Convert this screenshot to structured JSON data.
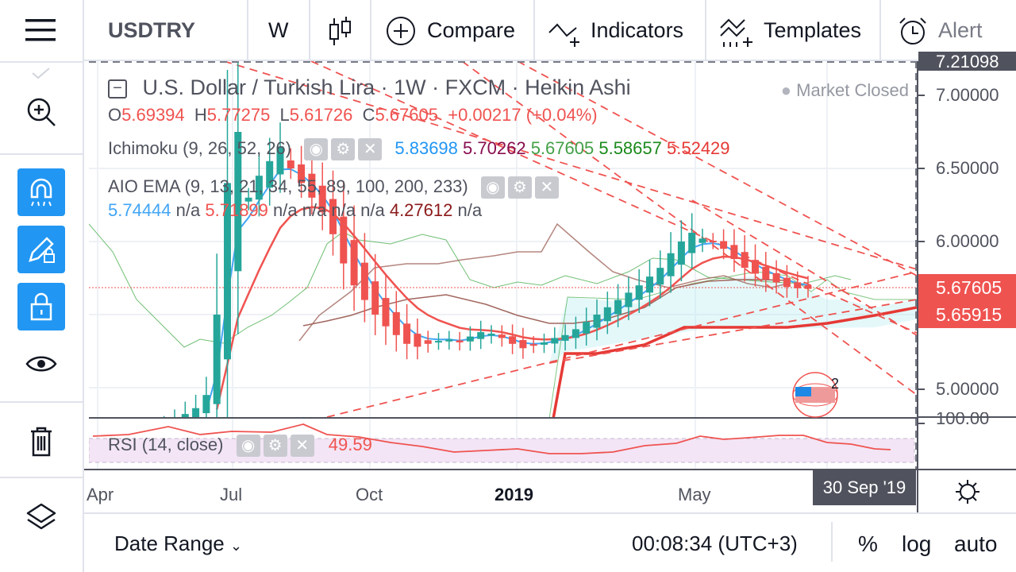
{
  "toolbar": {
    "symbol": "USDTRY",
    "interval": "W",
    "compare": "Compare",
    "indicators": "Indicators",
    "templates": "Templates",
    "alert": "Alert"
  },
  "legend": {
    "title": "U.S. Dollar / Turkish Lira · 1W · FXCM · Heikin Ashi",
    "market_status": "Market Closed",
    "o_label": "O",
    "o": "5.69394",
    "h_label": "H",
    "h": "5.77275",
    "l_label": "L",
    "l": "5.61726",
    "c_label": "C",
    "c": "5.67605",
    "change": "+0.00217 (+0.04%)",
    "ichimoku": {
      "name": "Ichimoku (9, 26, 52, 26)",
      "v1": "5.83698",
      "v2": "5.70262",
      "v3": "5.67605",
      "v4": "5.58657",
      "v5": "5.52429"
    },
    "ema": {
      "name": "AIO EMA (9, 13, 21, 34, 55, 89, 100, 200, 233)",
      "v1": "5.74444",
      "v2": "n/a",
      "v3": "5.71899",
      "v4": "n/a n/a n/a n/a",
      "v5": "4.27612",
      "v6": "n/a"
    },
    "rsi": {
      "name": "RSI (14, close)",
      "value": "49.59"
    }
  },
  "price_axis": {
    "top": "7.21098",
    "ticks": [
      "7.00000",
      "6.50000",
      "6.00000",
      "5.00000"
    ],
    "rsi_tick": "100.00",
    "last_price": "5.67605",
    "line_price": "5.65915"
  },
  "time_axis": {
    "labels": [
      "Apr",
      "Jul",
      "Oct",
      "2019",
      "May"
    ],
    "cursor_date": "30 Sep '19"
  },
  "events": {
    "count": "2"
  },
  "bottom": {
    "date_range": "Date Range",
    "clock": "00:08:34 (UTC+3)",
    "percent": "%",
    "log": "log",
    "auto": "auto"
  },
  "colors": {
    "up": "#26a69a",
    "down": "#ef5350",
    "accent": "#2196f3"
  },
  "chart_data": {
    "type": "candlestick",
    "ylim": [
      4.8,
      7.21
    ],
    "closes": [
      4.75,
      4.78,
      4.82,
      4.86,
      4.95,
      5.5,
      6.4,
      6.75,
      6.3,
      6.45,
      6.55,
      6.65,
      6.5,
      6.4,
      6.3,
      6.2,
      6.05,
      5.85,
      5.7,
      5.6,
      5.5,
      5.42,
      5.36,
      5.3,
      5.28,
      5.3,
      5.32,
      5.33,
      5.31,
      5.35,
      5.38,
      5.37,
      5.34,
      5.3,
      5.27,
      5.29,
      5.31,
      5.34,
      5.36,
      5.4,
      5.45,
      5.5,
      5.55,
      5.6,
      5.65,
      5.7,
      5.76,
      5.82,
      5.92,
      6.0,
      6.06,
      6.02,
      6.0,
      5.95,
      5.88,
      5.82,
      5.78,
      5.74,
      5.72,
      5.69,
      5.68,
      5.676
    ]
  }
}
